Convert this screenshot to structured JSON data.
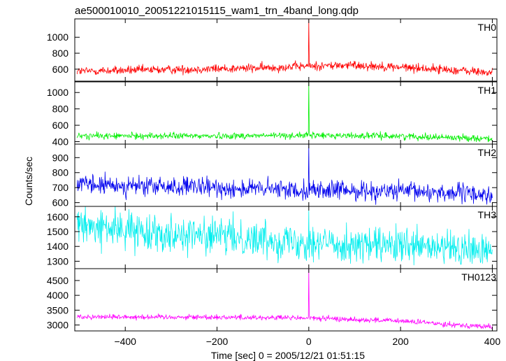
{
  "chart_data": {
    "type": "line",
    "title": "ae500010010_20051221015115_wam1_trn_4band_long.qdp",
    "xlabel": "Time [sec] 0 = 2005/12/21 01:51:15",
    "ylabel": "Counts/sec",
    "xlim": [
      -510,
      410
    ],
    "x_ticks": [
      -400,
      -200,
      0,
      200,
      400
    ],
    "x_tick_labels": [
      "−400",
      "−200",
      "0",
      "200",
      "400"
    ],
    "time_step": 1,
    "spike_x": 0,
    "panels": [
      {
        "name": "TH0",
        "color": "#ff0000",
        "ylim": [
          450,
          1230
        ],
        "y_ticks": [
          600,
          800,
          1000
        ],
        "y_tick_labels": [
          "600",
          "800",
          "1000"
        ],
        "trend_x": [
          -500,
          -300,
          -100,
          0,
          100,
          200,
          300,
          400
        ],
        "trend_y": [
          575,
          595,
          615,
          640,
          650,
          625,
          595,
          555
        ],
        "noise": 28,
        "spike_peak": 1230
      },
      {
        "name": "TH1",
        "color": "#00ee00",
        "ylim": [
          370,
          1130
        ],
        "y_ticks": [
          400,
          600,
          800,
          1000
        ],
        "y_tick_labels": [
          "400",
          "600",
          "800",
          "1000"
        ],
        "trend_x": [
          -500,
          -200,
          0,
          200,
          400
        ],
        "trend_y": [
          470,
          470,
          478,
          468,
          438
        ],
        "noise": 20,
        "spike_peak": 1130
      },
      {
        "name": "TH2",
        "color": "#0000ee",
        "ylim": [
          575,
          990
        ],
        "y_ticks": [
          600,
          700,
          800,
          900
        ],
        "y_tick_labels": [
          "600",
          "700",
          "800",
          "900"
        ],
        "trend_x": [
          -500,
          -300,
          -100,
          100,
          300,
          400
        ],
        "trend_y": [
          718,
          705,
          690,
          680,
          668,
          650
        ],
        "noise": 32,
        "spike_peak": 990
      },
      {
        "name": "TH3",
        "color": "#00eeee",
        "ylim": [
          1250,
          1670
        ],
        "y_ticks": [
          1300,
          1400,
          1500,
          1600
        ],
        "y_tick_labels": [
          "1300",
          "1400",
          "1500",
          "1600"
        ],
        "trend_x": [
          -500,
          -300,
          -100,
          100,
          300,
          400
        ],
        "trend_y": [
          1535,
          1490,
          1450,
          1410,
          1385,
          1365
        ],
        "noise": 60,
        "spike_peak": 1640
      },
      {
        "name": "TH0123",
        "color": "#ff00ff",
        "ylim": [
          2800,
          4900
        ],
        "y_ticks": [
          3000,
          3500,
          4000,
          4500
        ],
        "y_tick_labels": [
          "3000",
          "3500",
          "4000",
          "4500"
        ],
        "trend_x": [
          -500,
          -200,
          0,
          200,
          400
        ],
        "trend_y": [
          3280,
          3265,
          3235,
          3135,
          2930
        ],
        "noise": 45,
        "spike_peak": 4900
      }
    ]
  }
}
